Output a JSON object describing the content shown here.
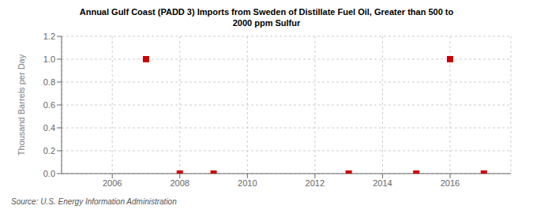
{
  "chart_data": {
    "type": "scatter",
    "title": "Annual Gulf Coast (PADD 3) Imports from Sweden of Distillate Fuel Oil, Greater than 500 to\n2000 ppm Sulfur",
    "ylabel": "Thousand Barrels per Day",
    "source": "Source: U.S. Energy Information Administration",
    "x": [
      2007,
      2008,
      2009,
      2013,
      2015,
      2016,
      2017
    ],
    "values": [
      1.0,
      0.0,
      0.0,
      0.0,
      0.0,
      1.0,
      0.0
    ],
    "color": "#cc0000",
    "marker": "square",
    "xlim": [
      2004.5,
      2017.8
    ],
    "xticks": [
      2006,
      2008,
      2010,
      2012,
      2014,
      2016
    ],
    "ylim": [
      0.0,
      1.2
    ],
    "yticks": [
      {
        "value": 0.0,
        "label": "0.0"
      },
      0.2,
      0.4,
      0.6,
      0.8,
      {
        "value": 1.0,
        "label": "1.0"
      },
      1.2
    ],
    "grid": true
  }
}
